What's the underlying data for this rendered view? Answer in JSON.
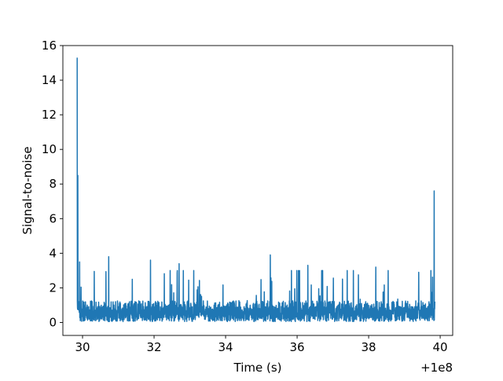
{
  "chart_data": {
    "type": "line",
    "title": "",
    "xlabel": "Time (s)",
    "ylabel": "Signal-to-noise",
    "x_offset_label": "+1e8",
    "xlim": [
      29.45,
      40.35
    ],
    "ylim": [
      -0.75,
      16.0
    ],
    "x_ticks": [
      30,
      32,
      34,
      36,
      38,
      40
    ],
    "x_tick_labels": [
      "30",
      "32",
      "34",
      "36",
      "38",
      "40"
    ],
    "y_ticks": [
      0,
      2,
      4,
      6,
      8,
      10,
      12,
      14,
      16
    ],
    "y_tick_labels": [
      "0",
      "2",
      "4",
      "6",
      "8",
      "10",
      "12",
      "14",
      "16"
    ],
    "grid": false,
    "legend": "none",
    "series": [
      {
        "color": "#1f77b4",
        "x_start": 29.85,
        "x_end": 39.85,
        "description_points": [
          [
            29.85,
            15.3
          ],
          [
            29.87,
            8.5
          ],
          [
            29.89,
            1.2
          ],
          [
            29.92,
            3.5
          ],
          [
            30.73,
            3.8
          ],
          [
            31.9,
            3.6
          ],
          [
            32.7,
            3.4
          ],
          [
            35.25,
            3.9
          ],
          [
            36.3,
            3.3
          ],
          [
            37.4,
            3.0
          ],
          [
            38.2,
            3.2
          ],
          [
            39.4,
            2.9
          ],
          [
            39.83,
            7.6
          ],
          [
            39.85,
            1.2
          ]
        ],
        "baseline_mean": 1.2,
        "baseline_max": 3.0,
        "baseline_min": 0.05
      }
    ]
  }
}
